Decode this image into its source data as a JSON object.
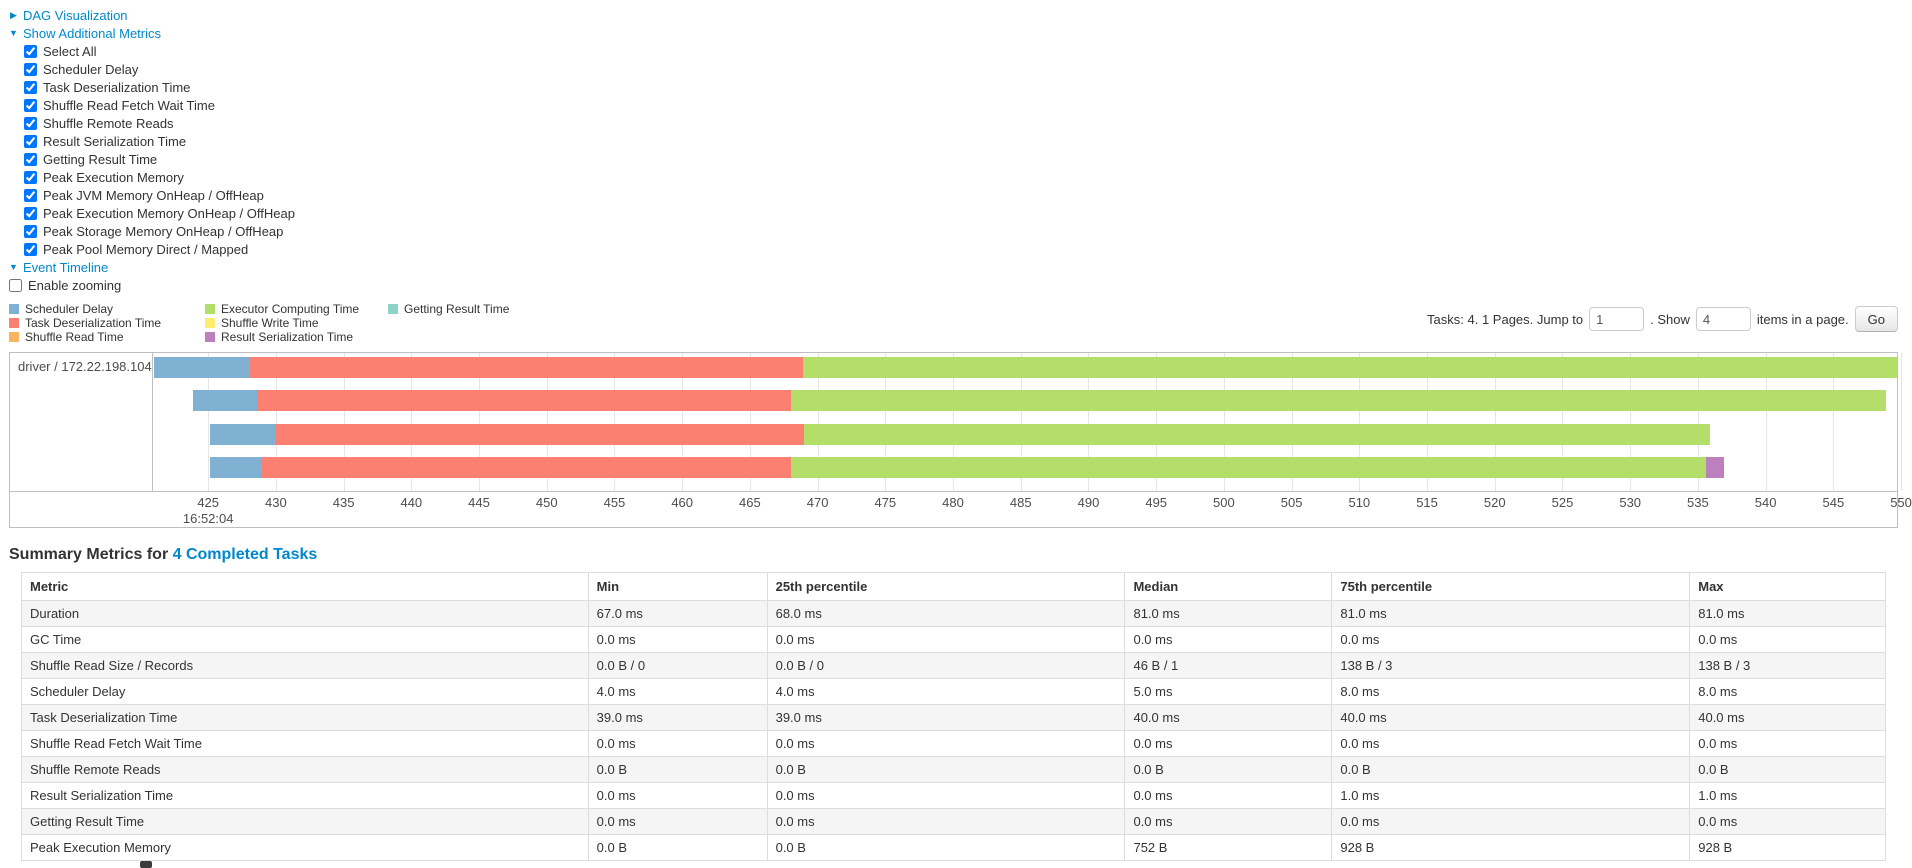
{
  "toggles": {
    "dag": {
      "label": "DAG Visualization",
      "expanded": false
    },
    "additional_metrics": {
      "label": "Show Additional Metrics",
      "expanded": true
    },
    "event_timeline": {
      "label": "Event Timeline",
      "expanded": true
    }
  },
  "metrics_panel": {
    "items": [
      {
        "label": "Select All",
        "checked": true
      },
      {
        "label": "Scheduler Delay",
        "checked": true
      },
      {
        "label": "Task Deserialization Time",
        "checked": true
      },
      {
        "label": "Shuffle Read Fetch Wait Time",
        "checked": true
      },
      {
        "label": "Shuffle Remote Reads",
        "checked": true
      },
      {
        "label": "Result Serialization Time",
        "checked": true
      },
      {
        "label": "Getting Result Time",
        "checked": true
      },
      {
        "label": "Peak Execution Memory",
        "checked": true
      },
      {
        "label": "Peak JVM Memory OnHeap / OffHeap",
        "checked": true
      },
      {
        "label": "Peak Execution Memory OnHeap / OffHeap",
        "checked": true
      },
      {
        "label": "Peak Storage Memory OnHeap / OffHeap",
        "checked": true
      },
      {
        "label": "Peak Pool Memory Direct / Mapped",
        "checked": true
      }
    ]
  },
  "zoom": {
    "label": "Enable zooming",
    "checked": false
  },
  "legend": {
    "columns": [
      [
        {
          "label": "Scheduler Delay",
          "color": "#80B1D3"
        },
        {
          "label": "Task Deserialization Time",
          "color": "#FB8072"
        },
        {
          "label": "Shuffle Read Time",
          "color": "#FDB462"
        }
      ],
      [
        {
          "label": "Executor Computing Time",
          "color": "#B3DE69"
        },
        {
          "label": "Shuffle Write Time",
          "color": "#FFED6F"
        },
        {
          "label": "Result Serialization Time",
          "color": "#BC80BD"
        }
      ],
      [
        {
          "label": "Getting Result Time",
          "color": "#8DD3C7"
        }
      ]
    ]
  },
  "pagination": {
    "prefix": "Tasks: 4. 1 Pages. Jump to",
    "jump_value": "1",
    "mid": ". Show",
    "show_value": "4",
    "suffix": "items in a page.",
    "go_label": "Go"
  },
  "chart_data": {
    "type": "timeline",
    "group_label": "driver / 172.22.198.104",
    "x_axis": {
      "min": 421,
      "max": 549.7,
      "ticks": [
        425,
        430,
        435,
        440,
        445,
        450,
        455,
        460,
        465,
        470,
        475,
        480,
        485,
        490,
        495,
        500,
        505,
        510,
        515,
        520,
        525,
        530,
        535,
        540,
        545,
        550
      ],
      "major_label": "16:52:04",
      "major_label_at": 425
    },
    "colors": {
      "scheduler_delay": "#80B1D3",
      "task_deserialization": "#FB8072",
      "shuffle_read": "#FDB462",
      "executor_computing": "#B3DE69",
      "shuffle_write": "#FFED6F",
      "result_serialization": "#BC80BD",
      "getting_result": "#8DD3C7"
    },
    "tasks": [
      {
        "segments": [
          {
            "t": "scheduler_delay",
            "from": 421.0,
            "to": 428.1
          },
          {
            "t": "task_deserialization",
            "from": 428.1,
            "to": 468.9
          },
          {
            "t": "executor_computing",
            "from": 468.9,
            "to": 549.7
          }
        ]
      },
      {
        "segments": [
          {
            "t": "scheduler_delay",
            "from": 423.9,
            "to": 428.6
          },
          {
            "t": "task_deserialization",
            "from": 428.6,
            "to": 468.0
          },
          {
            "t": "executor_computing",
            "from": 468.0,
            "to": 548.9
          }
        ]
      },
      {
        "segments": [
          {
            "t": "scheduler_delay",
            "from": 425.1,
            "to": 430.0
          },
          {
            "t": "task_deserialization",
            "from": 430.0,
            "to": 469.0
          },
          {
            "t": "executor_computing",
            "from": 469.0,
            "to": 535.9
          }
        ]
      },
      {
        "segments": [
          {
            "t": "scheduler_delay",
            "from": 425.1,
            "to": 429.0
          },
          {
            "t": "task_deserialization",
            "from": 429.0,
            "to": 468.0
          },
          {
            "t": "executor_computing",
            "from": 468.0,
            "to": 535.6
          },
          {
            "t": "result_serialization",
            "from": 535.6,
            "to": 536.9
          }
        ]
      }
    ]
  },
  "summary": {
    "title": "Summary Metrics for",
    "link": "4 Completed Tasks"
  },
  "table": {
    "headers": [
      "Metric",
      "Min",
      "25th percentile",
      "Median",
      "75th percentile",
      "Max"
    ],
    "col_widths": [
      "30.4%",
      "9.6%",
      "19.2%",
      "11.1%",
      "19.2%",
      "10.5%"
    ],
    "rows": [
      [
        "Duration",
        "67.0 ms",
        "68.0 ms",
        "81.0 ms",
        "81.0 ms",
        "81.0 ms"
      ],
      [
        "GC Time",
        "0.0 ms",
        "0.0 ms",
        "0.0 ms",
        "0.0 ms",
        "0.0 ms"
      ],
      [
        "Shuffle Read Size / Records",
        "0.0 B / 0",
        "0.0 B / 0",
        "46 B / 1",
        "138 B / 3",
        "138 B / 3"
      ],
      [
        "Scheduler Delay",
        "4.0 ms",
        "4.0 ms",
        "5.0 ms",
        "8.0 ms",
        "8.0 ms"
      ],
      [
        "Task Deserialization Time",
        "39.0 ms",
        "39.0 ms",
        "40.0 ms",
        "40.0 ms",
        "40.0 ms"
      ],
      [
        "Shuffle Read Fetch Wait Time",
        "0.0 ms",
        "0.0 ms",
        "0.0 ms",
        "0.0 ms",
        "0.0 ms"
      ],
      [
        "Shuffle Remote Reads",
        "0.0 B",
        "0.0 B",
        "0.0 B",
        "0.0 B",
        "0.0 B"
      ],
      [
        "Result Serialization Time",
        "0.0 ms",
        "0.0 ms",
        "0.0 ms",
        "1.0 ms",
        "1.0 ms"
      ],
      [
        "Getting Result Time",
        "0.0 ms",
        "0.0 ms",
        "0.0 ms",
        "0.0 ms",
        "0.0 ms"
      ],
      [
        "Peak Execution Memory",
        "0.0 B",
        "0.0 B",
        "752 B",
        "928 B",
        "928 B"
      ]
    ]
  }
}
